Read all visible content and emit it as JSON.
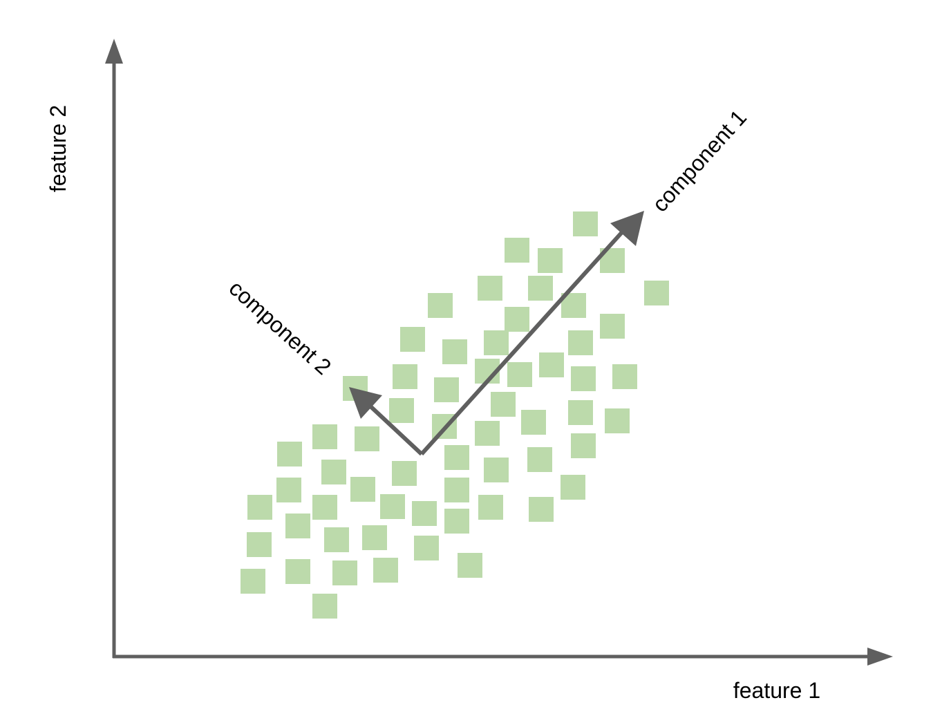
{
  "axes": {
    "x_label": "feature 1",
    "y_label": "feature 2"
  },
  "components": [
    {
      "label": "component 1"
    },
    {
      "label": "component 2"
    }
  ],
  "colors": {
    "point_fill": "#bcdaab",
    "axis": "#5f5f5f",
    "text": "#000000"
  }
}
